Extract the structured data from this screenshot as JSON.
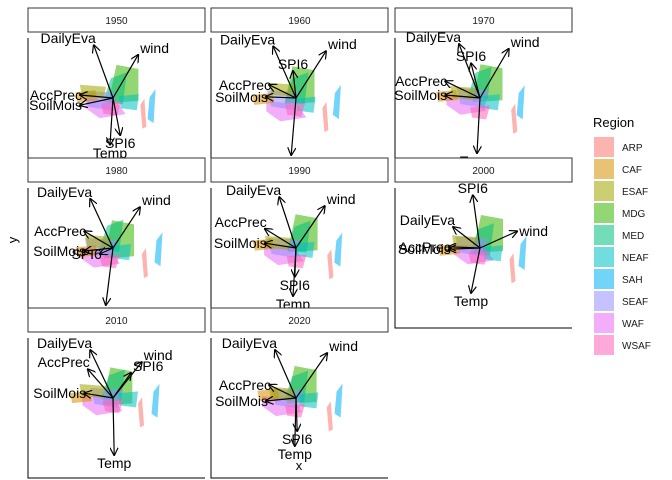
{
  "chart_data": {
    "type": "scatter",
    "facet_by": "year",
    "xlabel": "x",
    "ylabel": "y",
    "legend": {
      "title": "Region",
      "placement": "right",
      "entries": [
        {
          "name": "ARP",
          "color": "#F8766D"
        },
        {
          "name": "CAF",
          "color": "#D89000"
        },
        {
          "name": "ESAF",
          "color": "#A3A500"
        },
        {
          "name": "MDG",
          "color": "#39B600"
        },
        {
          "name": "MED",
          "color": "#00BF7D"
        },
        {
          "name": "NEAF",
          "color": "#00BFC4"
        },
        {
          "name": "SAH",
          "color": "#00B0F6"
        },
        {
          "name": "SEAF",
          "color": "#9590FF"
        },
        {
          "name": "WAF",
          "color": "#E76BF3"
        },
        {
          "name": "WSAF",
          "color": "#FF62BC"
        }
      ]
    },
    "panels": [
      {
        "label": "1950",
        "vectors": [
          {
            "name": "DailyEva",
            "x": -0.32,
            "y": 0.88
          },
          {
            "name": "wind",
            "x": 0.42,
            "y": 0.72
          },
          {
            "name": "AccPrec",
            "x": -0.55,
            "y": 0.05
          },
          {
            "name": "SoilMois",
            "x": -0.55,
            "y": -0.12
          },
          {
            "name": "SPI6",
            "x": 0.12,
            "y": -0.62
          },
          {
            "name": "Temp",
            "x": -0.05,
            "y": -0.78
          }
        ]
      },
      {
        "label": "1960",
        "vectors": [
          {
            "name": "DailyEva",
            "x": -0.38,
            "y": 0.86
          },
          {
            "name": "wind",
            "x": 0.5,
            "y": 0.78
          },
          {
            "name": "SPI6",
            "x": -0.05,
            "y": 0.45
          },
          {
            "name": "AccPrec",
            "x": -0.45,
            "y": 0.22
          },
          {
            "name": "SoilMois",
            "x": -0.5,
            "y": 0.02
          },
          {
            "name": "Temp",
            "x": -0.08,
            "y": -0.95
          }
        ]
      },
      {
        "label": "1970",
        "vectors": [
          {
            "name": "DailyEva",
            "x": -0.35,
            "y": 0.9
          },
          {
            "name": "wind",
            "x": 0.48,
            "y": 0.82
          },
          {
            "name": "SPI6",
            "x": -0.15,
            "y": 0.58
          },
          {
            "name": "AccPrec",
            "x": -0.58,
            "y": 0.28
          },
          {
            "name": "SoilMois",
            "x": -0.58,
            "y": 0.05
          },
          {
            "name": "Temp",
            "x": -0.05,
            "y": -0.92
          }
        ]
      },
      {
        "label": "1980",
        "vectors": [
          {
            "name": "DailyEva",
            "x": -0.38,
            "y": 0.82
          },
          {
            "name": "wind",
            "x": 0.45,
            "y": 0.68
          },
          {
            "name": "AccPrec",
            "x": -0.48,
            "y": 0.28
          },
          {
            "name": "SoilMois",
            "x": -0.48,
            "y": -0.05
          },
          {
            "name": "SPI6",
            "x": -0.22,
            "y": -0.1
          },
          {
            "name": "Temp",
            "x": -0.12,
            "y": -0.95
          }
        ]
      },
      {
        "label": "1990",
        "vectors": [
          {
            "name": "DailyEva",
            "x": -0.28,
            "y": 0.85
          },
          {
            "name": "wind",
            "x": 0.48,
            "y": 0.7
          },
          {
            "name": "AccPrec",
            "x": -0.52,
            "y": 0.32
          },
          {
            "name": "SoilMois",
            "x": -0.52,
            "y": 0.08
          },
          {
            "name": "SPI6",
            "x": -0.02,
            "y": -0.48
          },
          {
            "name": "Temp",
            "x": -0.05,
            "y": -0.8
          }
        ]
      },
      {
        "label": "2000",
        "vectors": [
          {
            "name": "SPI6",
            "x": -0.12,
            "y": 0.88
          },
          {
            "name": "DailyEva",
            "x": -0.45,
            "y": 0.35
          },
          {
            "name": "wind",
            "x": 0.62,
            "y": 0.28
          },
          {
            "name": "AccPrec",
            "x": -0.52,
            "y": 0.02
          },
          {
            "name": "SoilMois",
            "x": -0.52,
            "y": -0.02
          },
          {
            "name": "Temp",
            "x": -0.15,
            "y": -0.75
          }
        ]
      },
      {
        "label": "2010",
        "vectors": [
          {
            "name": "DailyEva",
            "x": -0.38,
            "y": 0.8
          },
          {
            "name": "wind",
            "x": 0.48,
            "y": 0.6
          },
          {
            "name": "SPI6",
            "x": 0.3,
            "y": 0.42
          },
          {
            "name": "AccPrec",
            "x": -0.42,
            "y": 0.48
          },
          {
            "name": "SoilMois",
            "x": -0.48,
            "y": 0.08
          },
          {
            "name": "Temp",
            "x": 0.02,
            "y": -0.95
          }
        ]
      },
      {
        "label": "2020",
        "vectors": [
          {
            "name": "DailyEva",
            "x": -0.35,
            "y": 0.8
          },
          {
            "name": "wind",
            "x": 0.52,
            "y": 0.75
          },
          {
            "name": "AccPrec",
            "x": -0.45,
            "y": 0.22
          },
          {
            "name": "SoilMois",
            "x": -0.5,
            "y": -0.05
          },
          {
            "name": "SPI6",
            "x": 0.02,
            "y": -0.55
          },
          {
            "name": "Temp",
            "x": -0.02,
            "y": -0.8
          }
        ]
      }
    ]
  }
}
